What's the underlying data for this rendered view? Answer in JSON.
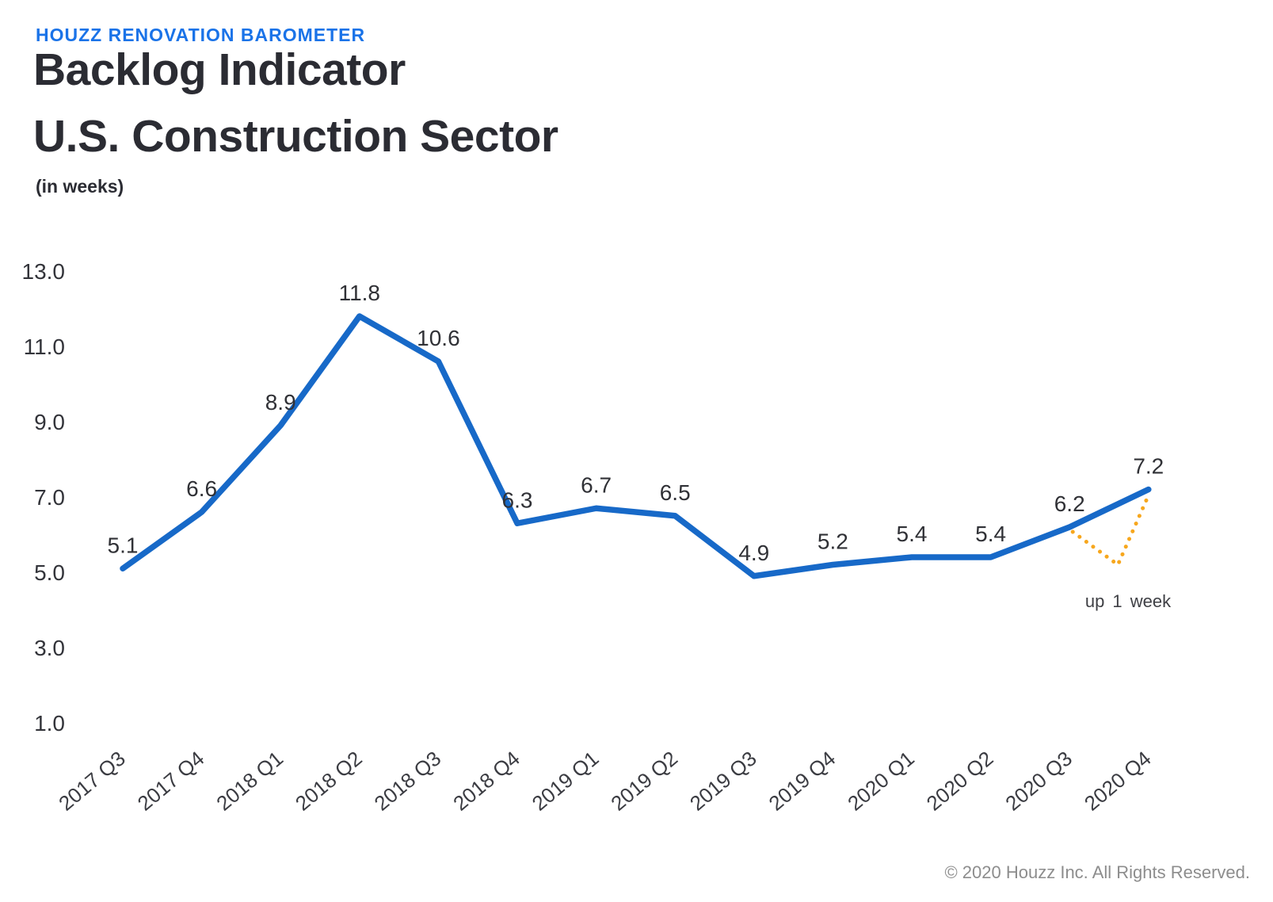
{
  "header": {
    "kicker": "HOUZZ RENOVATION BAROMETER",
    "title_line1": "Backlog Indicator",
    "title_line2": "U.S. Construction Sector",
    "units": "(in weeks)"
  },
  "chart_data": {
    "type": "line",
    "title": "Backlog Indicator U.S. Construction Sector (in weeks)",
    "categories": [
      "2017 Q3",
      "2017 Q4",
      "2018 Q1",
      "2018 Q2",
      "2018 Q3",
      "2018 Q4",
      "2019 Q1",
      "2019 Q2",
      "2019 Q3",
      "2019 Q4",
      "2020 Q1",
      "2020 Q2",
      "2020 Q3",
      "2020 Q4"
    ],
    "series": [
      {
        "name": "Backlog in weeks",
        "values": [
          5.1,
          6.6,
          8.9,
          11.8,
          10.6,
          6.3,
          6.7,
          6.5,
          4.9,
          5.2,
          5.4,
          5.4,
          6.2,
          7.2
        ]
      }
    ],
    "y_tick_labels": [
      "13.0",
      "11.0",
      "9.0",
      "7.0",
      "5.0",
      "3.0",
      "1.0"
    ],
    "ylim": [
      1.0,
      13.0
    ],
    "grid": false,
    "legend": "none",
    "line_color": "#1769c8",
    "annotation": {
      "text": "up 1 week",
      "color": "#f7a71d",
      "style": "dotted-v",
      "from_category": "2020 Q3",
      "to_category": "2020 Q4",
      "dip_value": 5.2
    }
  },
  "footer": {
    "copyright": "© 2020 Houzz Inc. All Rights Reserved."
  },
  "colors": {
    "kicker_blue": "#1a73e8",
    "title_dark": "#2b2c33",
    "line_blue": "#1769c8",
    "annotation_yellow": "#f7a71d",
    "footer_gray": "#8d8d8d"
  }
}
